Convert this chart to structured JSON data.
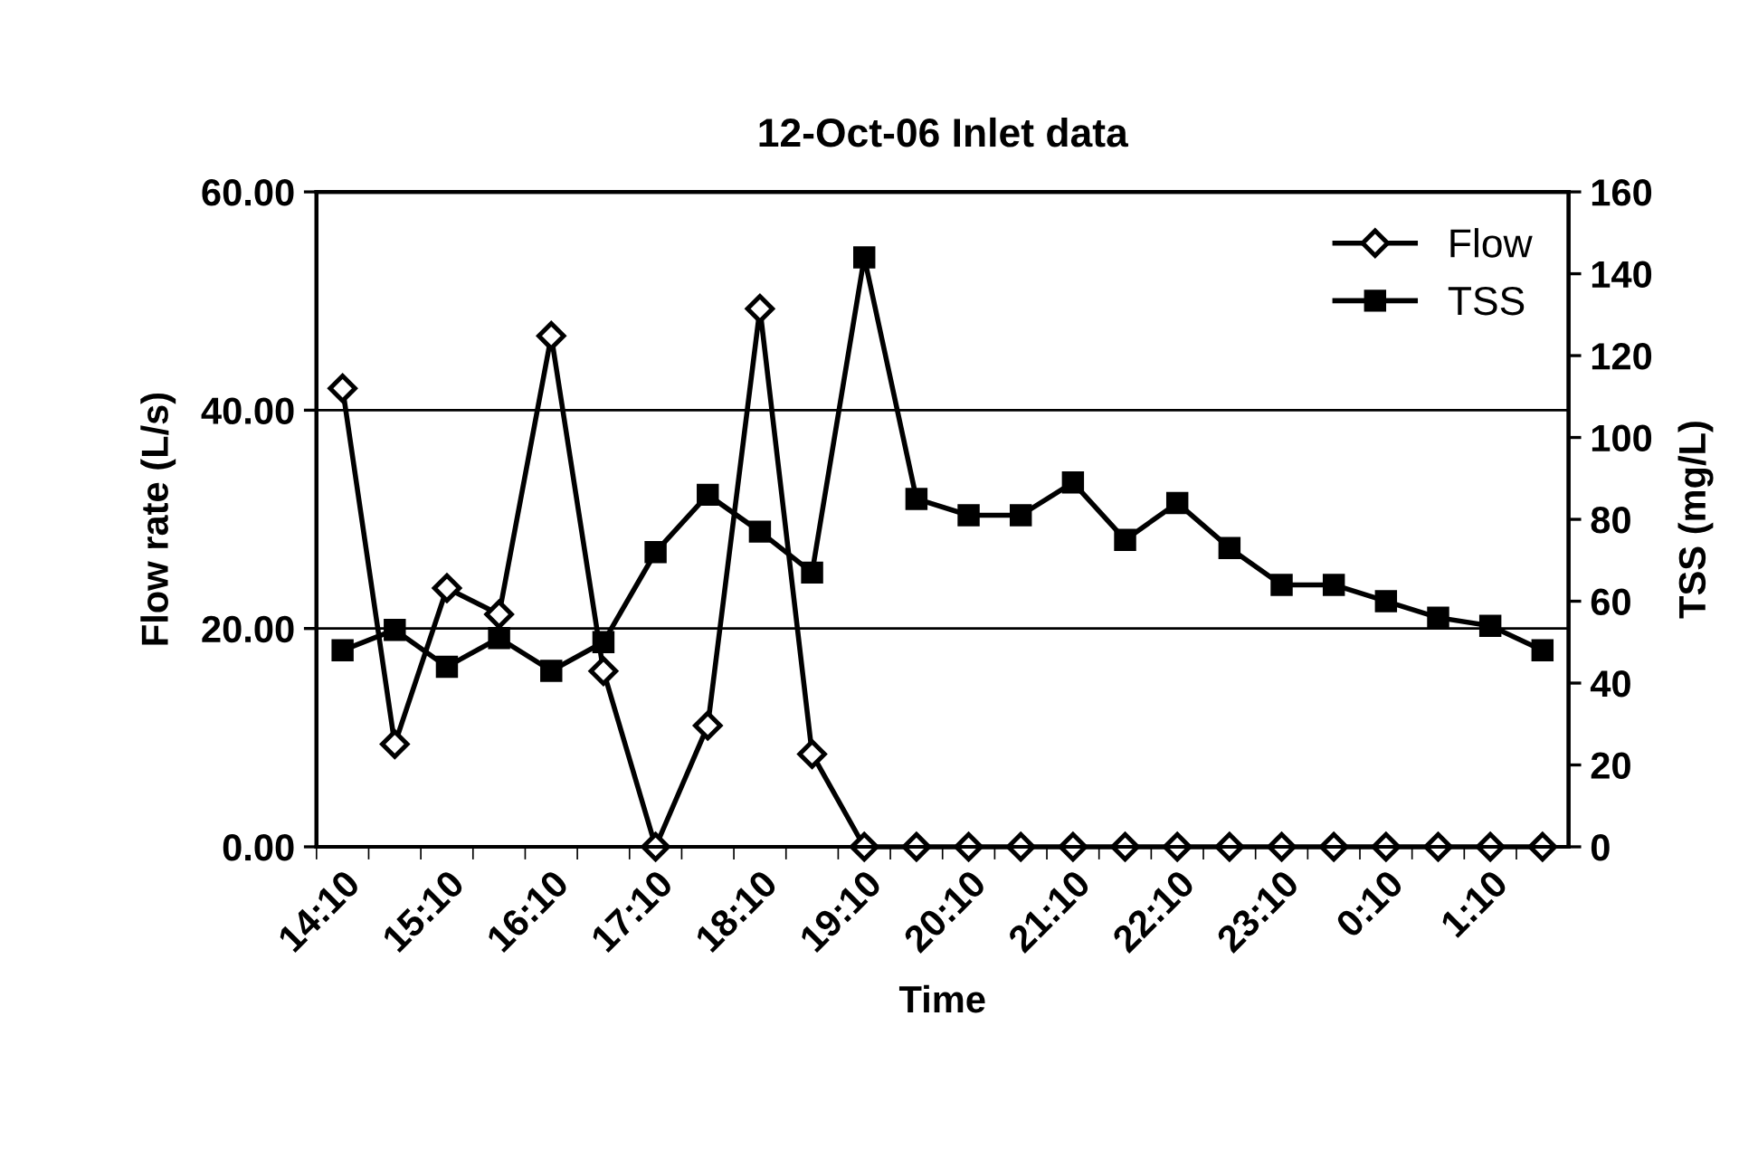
{
  "chart_data": {
    "type": "line",
    "title": "12-Oct-06 Inlet data",
    "xlabel": "Time",
    "ylabel": "Flow rate (L/s)",
    "y2label": "TSS (mg/L)",
    "categories": [
      "14:10",
      null,
      "15:10",
      null,
      "16:10",
      null,
      "17:10",
      null,
      "18:10",
      null,
      "19:10",
      null,
      "20:10",
      null,
      "21:10",
      null,
      "22:10",
      null,
      "23:10",
      null,
      "0:10",
      null,
      "1:10",
      null
    ],
    "series": [
      {
        "name": "Flow",
        "color": "#000000",
        "marker": "diamond",
        "values": [
          42.0,
          9.4,
          23.7,
          21.3,
          46.8,
          16.1,
          0,
          11.1,
          49.3,
          8.5,
          0,
          0,
          0,
          0,
          0,
          0,
          0,
          0,
          0,
          0,
          0,
          0,
          0,
          0
        ]
      },
      {
        "name": "TSS",
        "color": "#000000",
        "marker": "square",
        "axis": "y2",
        "values": [
          48,
          53,
          44,
          51,
          43,
          50,
          72,
          86,
          77,
          67,
          144,
          85,
          81,
          81,
          89,
          75,
          84,
          73,
          64,
          64,
          60,
          56,
          54,
          48
        ]
      }
    ],
    "ylim": [
      0,
      60
    ],
    "yticks": [
      {
        "value": 0,
        "label": "0.00"
      },
      {
        "value": 20,
        "label": "20.00"
      },
      {
        "value": 40,
        "label": "40.00"
      },
      {
        "value": 60,
        "label": "60.00"
      }
    ],
    "y2lim": [
      0,
      160
    ],
    "y2ticks": [
      0,
      20,
      40,
      60,
      80,
      100,
      120,
      140,
      160
    ],
    "grid": "y",
    "legend": "top right",
    "line_style": "solid"
  }
}
